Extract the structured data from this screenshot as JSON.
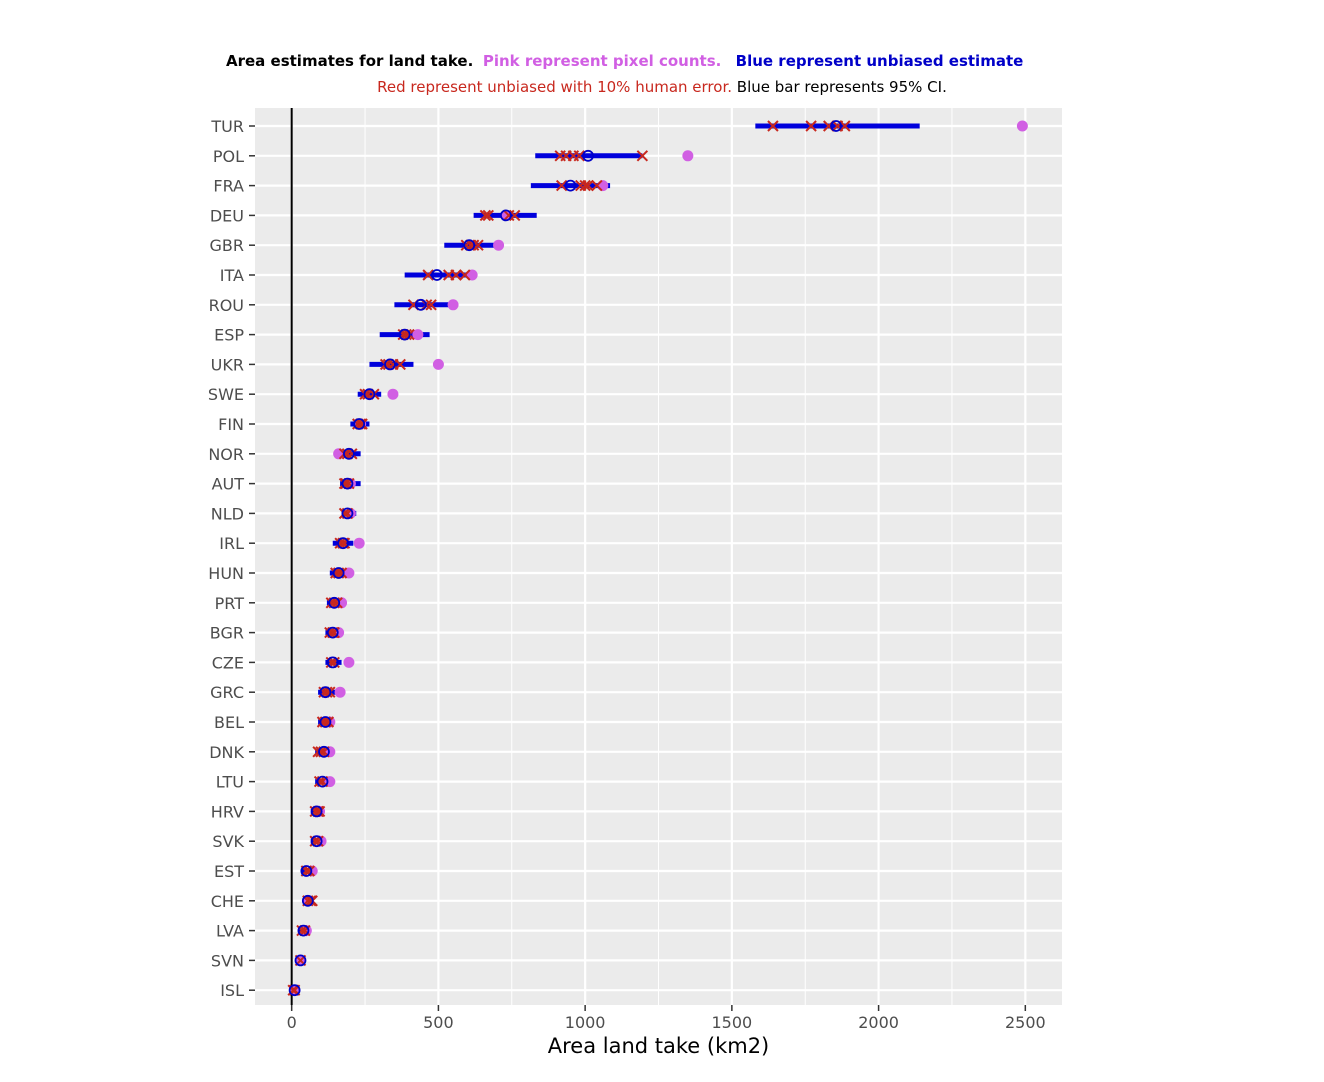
{
  "title": {
    "line1": [
      {
        "text": "Area estimates for land take.",
        "color": "#000000"
      },
      {
        "text": "Pink represent pixel counts.",
        "color": "#d15fe3"
      },
      {
        "text": "Blue represent unbiased estimate",
        "color": "#0000c8"
      }
    ],
    "line2": [
      {
        "text": "Red represent unbiased with 10% human error.",
        "color": "#c8281e"
      },
      {
        "text": "Blue bar represents 95% CI.",
        "color": "#000000"
      }
    ]
  },
  "chart_data": {
    "type": "scatter",
    "orientation": "horizontal",
    "xlabel": "Area land take (km2)",
    "ylabel": "",
    "xlim": [
      -125,
      2625
    ],
    "xticks": [
      0,
      500,
      1000,
      1500,
      2000,
      2500
    ],
    "grid": true,
    "vline_x": 0,
    "colors": {
      "pixel_count": "#d15fe3",
      "unbiased": "#0000c8",
      "ci_bar": "#0000dc",
      "human_error": "#c8281e",
      "panel": "#ebebeb",
      "grid": "#ffffff"
    },
    "categories": [
      "TUR",
      "POL",
      "FRA",
      "DEU",
      "GBR",
      "ITA",
      "ROU",
      "ESP",
      "UKR",
      "SWE",
      "FIN",
      "NOR",
      "AUT",
      "NLD",
      "IRL",
      "HUN",
      "PRT",
      "BGR",
      "CZE",
      "GRC",
      "BEL",
      "DNK",
      "LTU",
      "HRV",
      "SVK",
      "EST",
      "CHE",
      "LVA",
      "SVN",
      "ISL"
    ],
    "pixel_count": [
      2490,
      1350,
      1060,
      730,
      705,
      615,
      550,
      430,
      500,
      345,
      235,
      160,
      200,
      200,
      230,
      195,
      170,
      160,
      195,
      165,
      130,
      130,
      130,
      95,
      100,
      70,
      55,
      50,
      30,
      10
    ],
    "unbiased": [
      1855,
      1010,
      950,
      730,
      605,
      495,
      440,
      385,
      335,
      265,
      230,
      195,
      190,
      190,
      175,
      160,
      145,
      140,
      140,
      115,
      115,
      110,
      105,
      85,
      85,
      50,
      55,
      40,
      30,
      10
    ],
    "ci_low": [
      1580,
      830,
      815,
      620,
      520,
      385,
      350,
      300,
      265,
      225,
      200,
      160,
      165,
      170,
      140,
      130,
      120,
      115,
      115,
      90,
      90,
      80,
      80,
      65,
      65,
      35,
      40,
      25,
      15,
      0
    ],
    "ci_high": [
      2140,
      1195,
      1085,
      835,
      690,
      610,
      540,
      470,
      415,
      305,
      265,
      235,
      235,
      220,
      210,
      195,
      180,
      175,
      170,
      150,
      140,
      120,
      130,
      110,
      105,
      65,
      70,
      55,
      45,
      25
    ],
    "human_error": [
      [
        1640,
        1770,
        1830,
        1860,
        1885
      ],
      [
        915,
        935,
        960,
        980,
        1195
      ],
      [
        920,
        985,
        1000,
        1010,
        1040
      ],
      [
        660,
        670,
        740,
        760
      ],
      [
        595,
        610,
        620,
        635
      ],
      [
        465,
        535,
        560,
        590
      ],
      [
        415,
        460,
        475
      ],
      [
        380,
        390,
        400
      ],
      [
        320,
        330,
        345,
        370
      ],
      [
        250,
        260,
        280
      ],
      [
        225,
        235,
        240
      ],
      [
        180,
        190,
        205
      ],
      [
        180,
        185,
        195
      ],
      [
        180,
        190
      ],
      [
        165,
        175,
        180
      ],
      [
        150,
        160,
        170
      ],
      [
        135,
        145,
        155
      ],
      [
        130,
        140,
        145
      ],
      [
        135,
        145
      ],
      [
        110,
        120,
        130
      ],
      [
        105,
        115,
        125
      ],
      [
        90,
        100,
        110
      ],
      [
        95,
        105
      ],
      [
        80,
        90,
        95
      ],
      [
        80,
        90
      ],
      [
        50,
        60
      ],
      [
        55,
        65,
        70
      ],
      [
        35,
        45
      ],
      [
        30
      ],
      [
        5,
        10
      ]
    ]
  }
}
